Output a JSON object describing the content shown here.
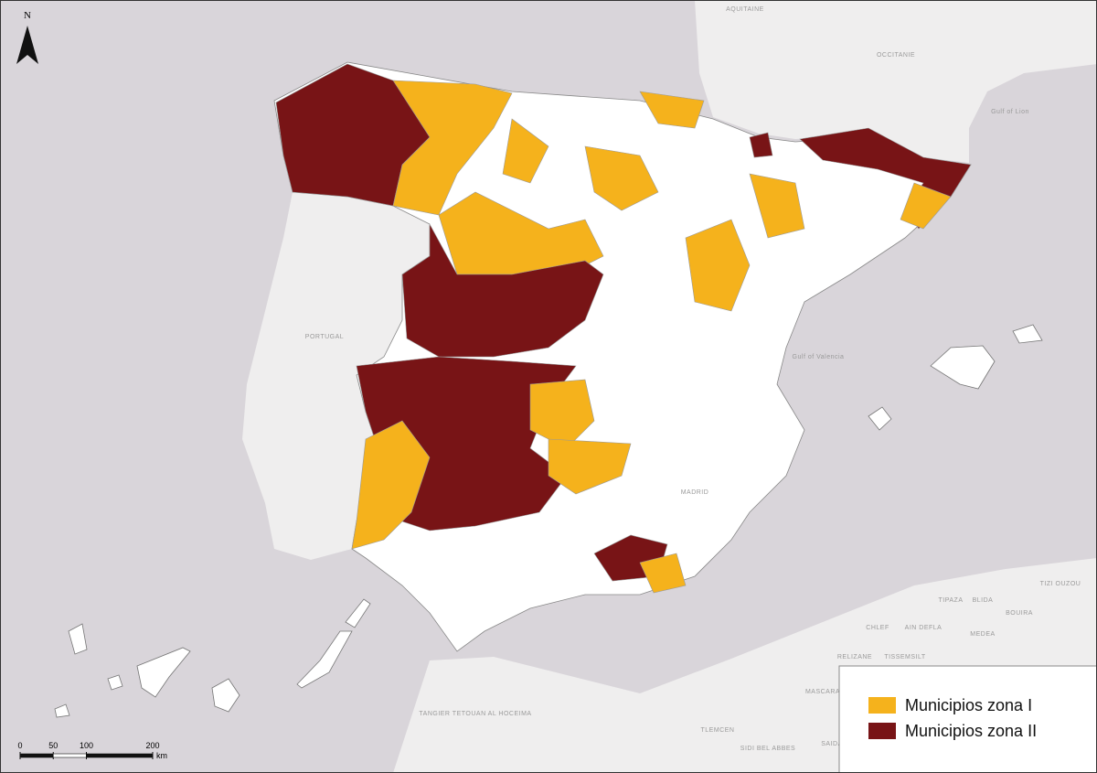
{
  "north_arrow": "N",
  "places": {
    "portugal": "PORTUGAL",
    "aquitaine": "AQUITAINE",
    "occitanie": "OCCITANIE",
    "gulf_of_lion": "Gulf of Lion",
    "gulf_of_valencia": "Gulf of Valencia",
    "madrid": "MADRID",
    "tangier": "TANGIER TETOUAN AL HOCEIMA",
    "tlemcen": "TLEMCEN",
    "sidi_bel_abbes": "SIDI BEL ABBES",
    "mascara": "MASCARA",
    "saida": "SAIDA",
    "relizane": "RELIZANE",
    "tissemsilt": "TISSEMSILT",
    "chlef": "CHLEF",
    "ain_defla": "AIN DEFLA",
    "medea": "MEDEA",
    "tipaza": "TIPAZA",
    "blida": "BLIDA",
    "bouira": "BOUIRA",
    "tizi_ouzou": "TIZI OUZOU"
  },
  "scale_bar": {
    "ticks": [
      0,
      50,
      100,
      200
    ],
    "unit": "km"
  },
  "legend": [
    {
      "label": "Municipios zona I",
      "color": "#f5b21c"
    },
    {
      "label": "Municipios zona II",
      "color": "#781416"
    }
  ]
}
